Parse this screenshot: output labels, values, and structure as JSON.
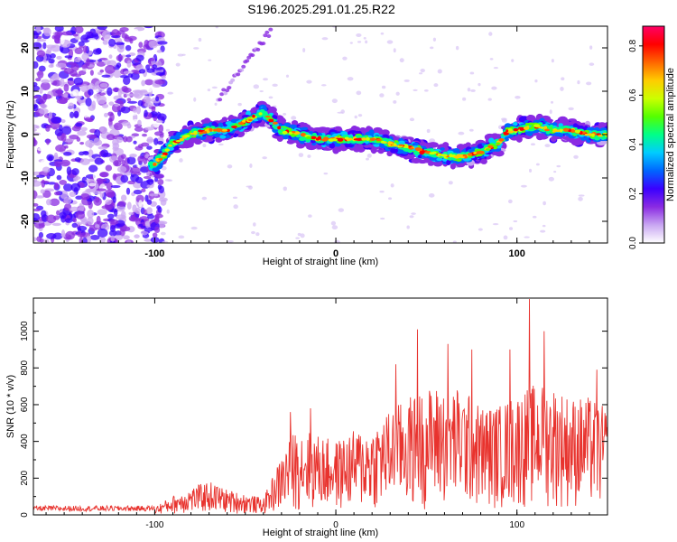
{
  "title": "S196.2025.291.01.25.R22",
  "chart_data": [
    {
      "type": "heatmap",
      "name": "spectrogram",
      "xlabel": "Height of straight line (km)",
      "ylabel": "Frequency (Hz)",
      "xlim": [
        -167,
        150
      ],
      "ylim": [
        -25,
        25
      ],
      "xticks": [
        -100,
        0,
        100
      ],
      "yticks": [
        -20,
        -10,
        0,
        10,
        20
      ],
      "ridge_km": [
        -100,
        -90,
        -80,
        -70,
        -60,
        -50,
        -45,
        -40,
        -30,
        -20,
        -10,
        0,
        10,
        20,
        30,
        40,
        50,
        60,
        70,
        80,
        90,
        95,
        100,
        110,
        120,
        130,
        140,
        150
      ],
      "ridge_hz": [
        -7,
        -2,
        0,
        1,
        1,
        3,
        4,
        5,
        1,
        0,
        -1,
        -1,
        -1,
        -1,
        -2,
        -3,
        -4,
        -5,
        -5,
        -4,
        -2,
        1,
        1,
        2,
        1,
        1,
        0,
        0
      ],
      "colorbar": {
        "label": "Normalized spectral amplitude",
        "min": 0.0,
        "max": 0.88,
        "ticks": [
          "0.0",
          "0.2",
          "0.4",
          "0.6",
          "0.8"
        ],
        "colors": [
          "#ffffff",
          "#c9a6f2",
          "#8a2be2",
          "#3a00ff",
          "#0066ff",
          "#00ccff",
          "#00ff88",
          "#55ff00",
          "#ccff00",
          "#ffcc00",
          "#ff6600",
          "#ff0000",
          "#ff0066"
        ]
      }
    },
    {
      "type": "line",
      "name": "snr",
      "xlabel": "Height of straight line (km)",
      "ylabel": "SNR (10 * v/v)",
      "xlim": [
        -167,
        150
      ],
      "ylim": [
        0,
        1180
      ],
      "xticks": [
        -100,
        0,
        100
      ],
      "yticks": [
        0,
        200,
        400,
        600,
        800,
        1000
      ],
      "line_color": "#e8332e",
      "envelope_km": [
        -167,
        -100,
        -90,
        -80,
        -70,
        -60,
        -50,
        -40,
        -30,
        -25,
        -20,
        -10,
        0,
        10,
        20,
        30,
        40,
        50,
        60,
        70,
        80,
        90,
        100,
        110,
        120,
        130,
        140,
        150
      ],
      "envelope_snr": [
        40,
        40,
        90,
        130,
        160,
        120,
        100,
        80,
        280,
        380,
        420,
        380,
        350,
        400,
        420,
        500,
        560,
        600,
        620,
        600,
        520,
        520,
        580,
        620,
        620,
        560,
        560,
        500
      ],
      "peaks": [
        {
          "km": -25,
          "snr": 560
        },
        {
          "km": -14,
          "snr": 580
        },
        {
          "km": 33,
          "snr": 820
        },
        {
          "km": 45,
          "snr": 1010
        },
        {
          "km": 62,
          "snr": 930
        },
        {
          "km": 75,
          "snr": 900
        },
        {
          "km": 96,
          "snr": 900
        },
        {
          "km": 107,
          "snr": 1175
        },
        {
          "km": 115,
          "snr": 1000
        },
        {
          "km": 144,
          "snr": 790
        }
      ]
    }
  ]
}
